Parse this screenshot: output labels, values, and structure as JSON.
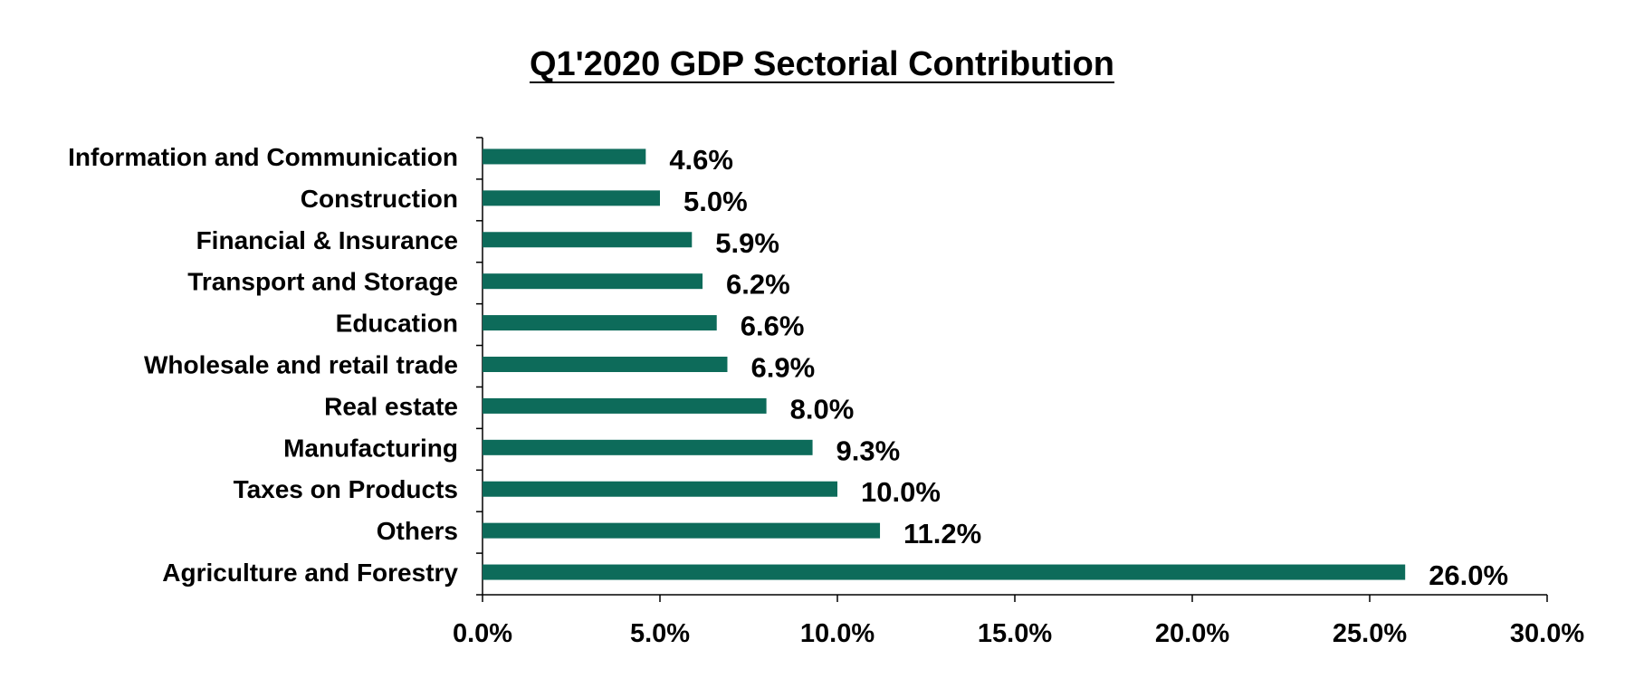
{
  "chart_data": {
    "type": "bar",
    "orientation": "horizontal",
    "title": "Q1'2020 GDP  Sectorial  Contribution",
    "categories": [
      "Information and Communication",
      "Construction",
      "Financial & Insurance",
      "Transport and Storage",
      "Education",
      "Wholesale and retail trade",
      "Real estate",
      "Manufacturing",
      "Taxes on Products",
      "Others",
      "Agriculture and Forestry"
    ],
    "values": [
      4.6,
      5.0,
      5.9,
      6.2,
      6.6,
      6.9,
      8.0,
      9.3,
      10.0,
      11.2,
      26.0
    ],
    "value_labels": [
      "4.6%",
      "5.0%",
      "5.9%",
      "6.2%",
      "6.6%",
      "6.9%",
      "8.0%",
      "9.3%",
      "10.0%",
      "11.2%",
      "26.0%"
    ],
    "xlim": [
      0,
      30
    ],
    "xticks": [
      0,
      5,
      10,
      15,
      20,
      25,
      30
    ],
    "xtick_labels": [
      "0.0%",
      "5.0%",
      "10.0%",
      "15.0%",
      "20.0%",
      "25.0%",
      "30.0%"
    ],
    "xlabel": "",
    "ylabel": "",
    "grid": false,
    "legend": "none",
    "bar_color": "#0d6b5a"
  }
}
